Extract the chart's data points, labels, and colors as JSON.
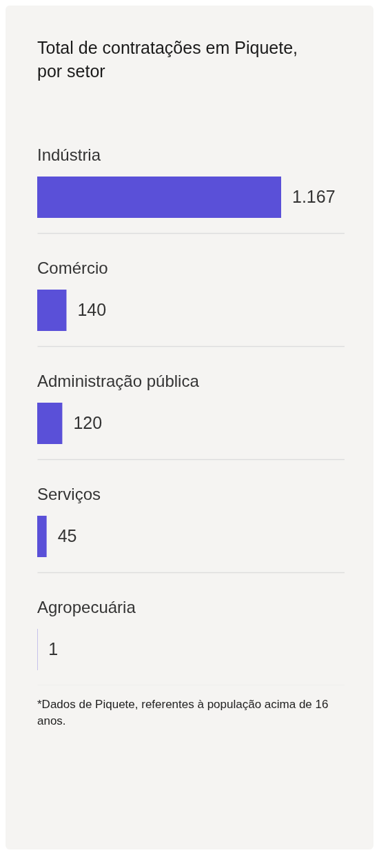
{
  "chart_data": {
    "type": "bar",
    "orientation": "horizontal",
    "title": "Total de contratações em Piquete, por setor",
    "categories": [
      "Indústria",
      "Comércio",
      "Administração pública",
      "Serviços",
      "Agropecuária"
    ],
    "values": [
      1167,
      140,
      120,
      45,
      1
    ],
    "value_labels": [
      "1.167",
      "140",
      "120",
      "45",
      "1"
    ],
    "color": "#5a50d8",
    "annotations": [
      "*Dados de Piquete, referentes à população acima de 16 anos."
    ]
  }
}
